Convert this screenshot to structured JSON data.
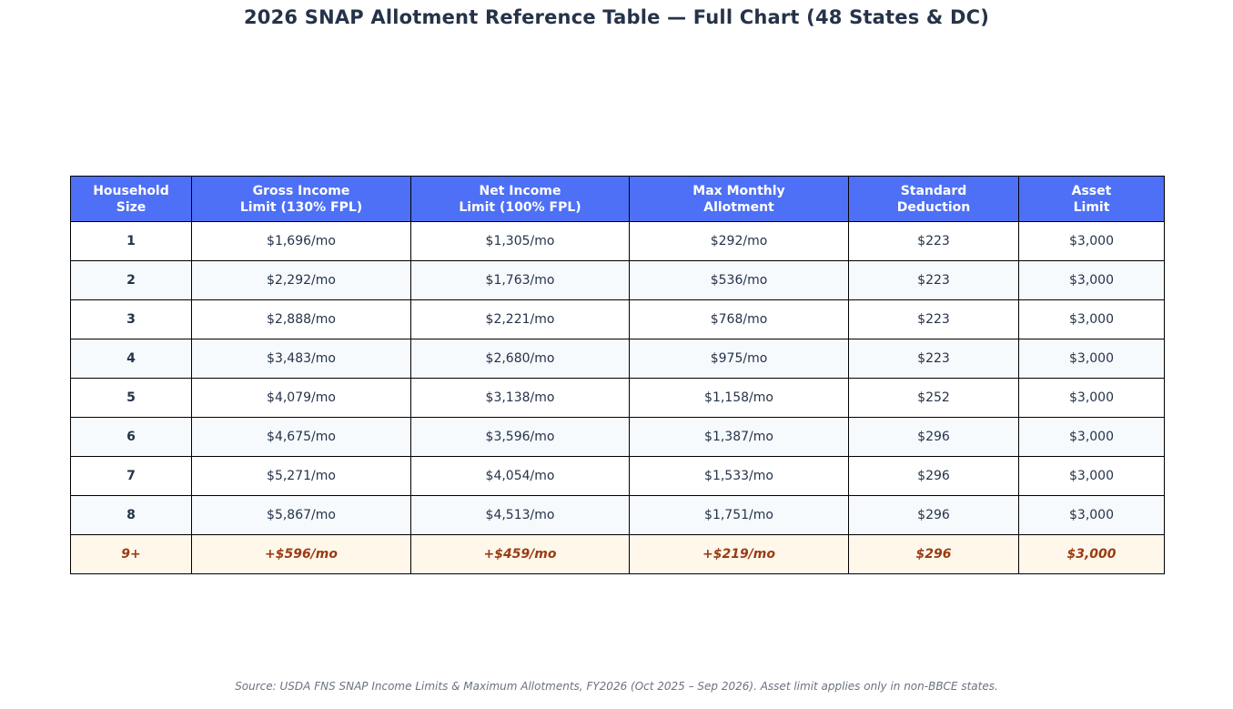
{
  "chart_data": {
    "type": "table",
    "title": "2026 SNAP Allotment Reference Table — Full Chart (48 States & DC)",
    "columns": [
      [
        "Household",
        "Size"
      ],
      [
        "Gross Income",
        "Limit (130% FPL)"
      ],
      [
        "Net Income",
        "Limit (100% FPL)"
      ],
      [
        "Max Monthly",
        "Allotment"
      ],
      [
        "Standard",
        "Deduction"
      ],
      [
        "Asset",
        "Limit"
      ]
    ],
    "rows": [
      [
        "1",
        "$1,696/mo",
        "$1,305/mo",
        "$292/mo",
        "$223",
        "$3,000"
      ],
      [
        "2",
        "$2,292/mo",
        "$1,763/mo",
        "$536/mo",
        "$223",
        "$3,000"
      ],
      [
        "3",
        "$2,888/mo",
        "$2,221/mo",
        "$768/mo",
        "$223",
        "$3,000"
      ],
      [
        "4",
        "$3,483/mo",
        "$2,680/mo",
        "$975/mo",
        "$223",
        "$3,000"
      ],
      [
        "5",
        "$4,079/mo",
        "$3,138/mo",
        "$1,158/mo",
        "$252",
        "$3,000"
      ],
      [
        "6",
        "$4,675/mo",
        "$3,596/mo",
        "$1,387/mo",
        "$296",
        "$3,000"
      ],
      [
        "7",
        "$5,271/mo",
        "$4,054/mo",
        "$1,533/mo",
        "$296",
        "$3,000"
      ],
      [
        "8",
        "$5,867/mo",
        "$4,513/mo",
        "$1,751/mo",
        "$296",
        "$3,000"
      ],
      [
        "9+",
        "+$596/mo",
        "+$459/mo",
        "+$219/mo",
        "$296",
        "$3,000"
      ]
    ],
    "source": "Source: USDA FNS SNAP Income Limits & Maximum Allotments, FY2026 (Oct 2025 – Sep 2026). Asset limit applies only in non-BBCE states."
  },
  "colors": {
    "header_bg": "#4e70f6",
    "header_text": "#ffffff",
    "title_text": "#253349",
    "body_text": "#253349",
    "row_alt_bg": "#f7fafd",
    "last_row_bg": "#fef7ea",
    "last_row_text": "#9a3b13",
    "source_text": "#6b7280"
  }
}
